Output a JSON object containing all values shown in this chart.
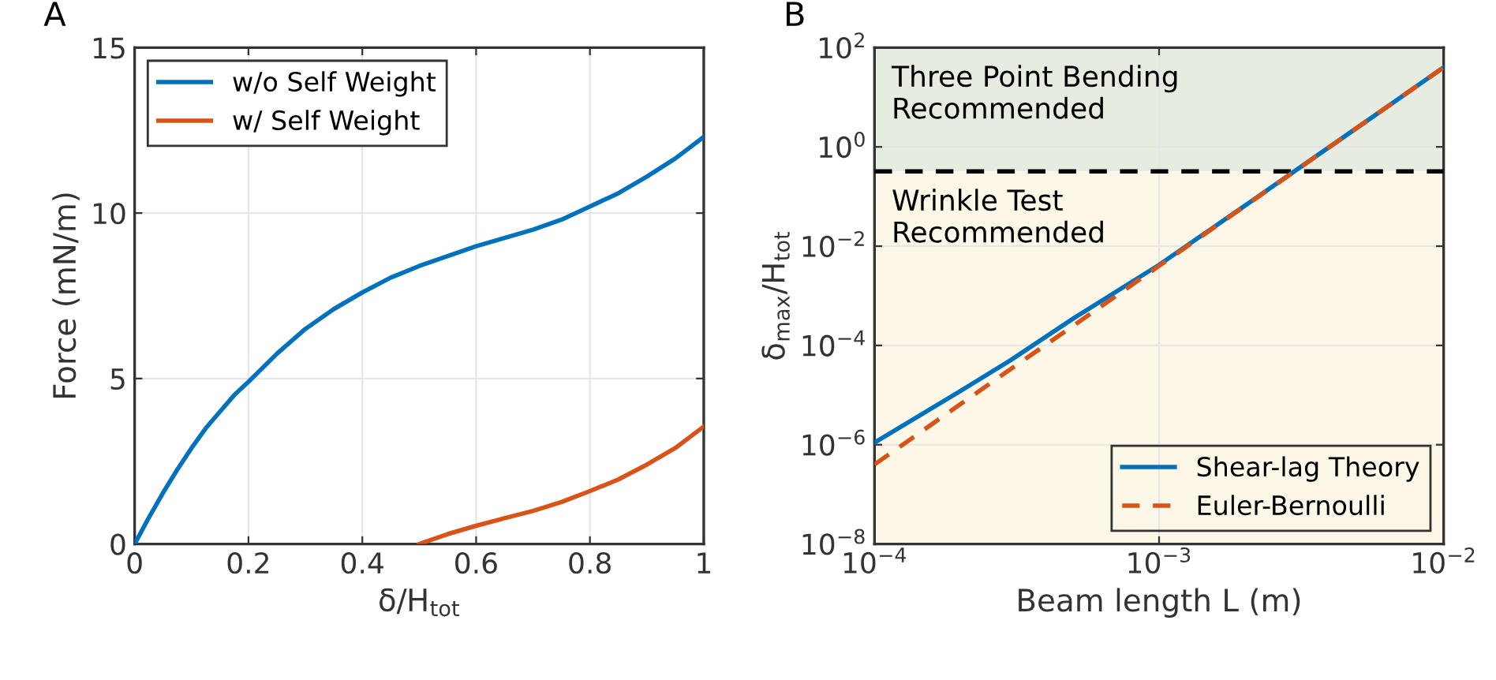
{
  "chart_data": [
    {
      "type": "line",
      "title": "A",
      "xlabel": "δ/H$_{tot}$",
      "ylabel": "Force (mN/m)",
      "xlim": [
        0,
        1
      ],
      "ylim": [
        0,
        15
      ],
      "xticks": [
        0,
        0.2,
        0.4,
        0.6,
        0.8,
        1
      ],
      "yticks": [
        0,
        5,
        10,
        15
      ],
      "grid": true,
      "legend": "top left",
      "line_style": "solid",
      "series": [
        {
          "name": "w/o Self Weight",
          "color": "#0072bd",
          "x": [
            0,
            0.025,
            0.05,
            0.075,
            0.1,
            0.125,
            0.15,
            0.175,
            0.2,
            0.25,
            0.3,
            0.35,
            0.4,
            0.45,
            0.5,
            0.55,
            0.6,
            0.65,
            0.7,
            0.75,
            0.8,
            0.85,
            0.9,
            0.95,
            1.0
          ],
          "values": [
            0,
            0.8,
            1.55,
            2.25,
            2.9,
            3.5,
            4.0,
            4.5,
            4.9,
            5.75,
            6.5,
            7.1,
            7.6,
            8.05,
            8.4,
            8.7,
            9.0,
            9.25,
            9.5,
            9.8,
            10.2,
            10.6,
            11.1,
            11.65,
            12.3
          ]
        },
        {
          "name": "w/ Self Weight",
          "color": "#d95319",
          "x": [
            0.5,
            0.55,
            0.6,
            0.65,
            0.7,
            0.75,
            0.8,
            0.85,
            0.9,
            0.95,
            1.0
          ],
          "values": [
            0,
            0.3,
            0.55,
            0.78,
            1.0,
            1.27,
            1.6,
            1.95,
            2.4,
            2.9,
            3.55
          ]
        }
      ]
    },
    {
      "type": "line",
      "title": "B",
      "xlabel": "Beam length L (m)",
      "ylabel": "δ$_{max}$/H$_{tot}$",
      "log": "xy",
      "xlim": [
        0.0001,
        0.01
      ],
      "ylim": [
        1e-08,
        100
      ],
      "xticks": [
        {
          "value": 0.0001,
          "label": "10$^{−4}$"
        },
        {
          "value": 0.001,
          "label": "10$^{−3}$"
        },
        {
          "value": 0.01,
          "label": "10$^{−2}$"
        }
      ],
      "yticks": [
        {
          "value": 1e-08,
          "label": "10$^{−8}$"
        },
        {
          "value": 1e-06,
          "label": "10$^{−6}$"
        },
        {
          "value": 0.0001,
          "label": "10$^{−4}$"
        },
        {
          "value": 0.01,
          "label": "10$^{−2}$"
        },
        {
          "value": 1,
          "label": "10$^{0}$"
        },
        {
          "value": 100,
          "label": "10$^{2}$"
        }
      ],
      "grid": true,
      "legend": "bottom right",
      "bands": [
        {
          "axis": "y",
          "from": 0.32,
          "to": 100,
          "label": "Three Point Bending\nRecommended",
          "color": "#e6ece0"
        },
        {
          "axis": "y",
          "from": 1e-08,
          "to": 0.32,
          "label": "Wrinkle Test\nRecommended",
          "color": "#fcf7e6"
        }
      ],
      "ref_lines": [
        {
          "axis": "y",
          "value": 0.32,
          "color": "#000000",
          "line_style": "dashed"
        }
      ],
      "series": [
        {
          "name": "Shear-lag Theory",
          "color": "#0072bd",
          "line_style": "solid",
          "x": [
            0.0001,
            0.0002,
            0.0003,
            0.0005,
            0.001,
            0.002,
            0.005,
            0.01
          ],
          "values": [
            1.1e-06,
            1.2e-05,
            5e-05,
            0.00035,
            0.0042,
            0.065,
            2.5,
            40
          ]
        },
        {
          "name": "Euler-Bernoulli",
          "color": "#d95319",
          "line_style": "dashed",
          "x": [
            0.0001,
            0.0002,
            0.0003,
            0.0005,
            0.001,
            0.002,
            0.005,
            0.01
          ],
          "values": [
            4e-07,
            6.5e-06,
            3.3e-05,
            0.00025,
            0.004,
            0.064,
            2.5,
            40
          ]
        }
      ]
    }
  ]
}
